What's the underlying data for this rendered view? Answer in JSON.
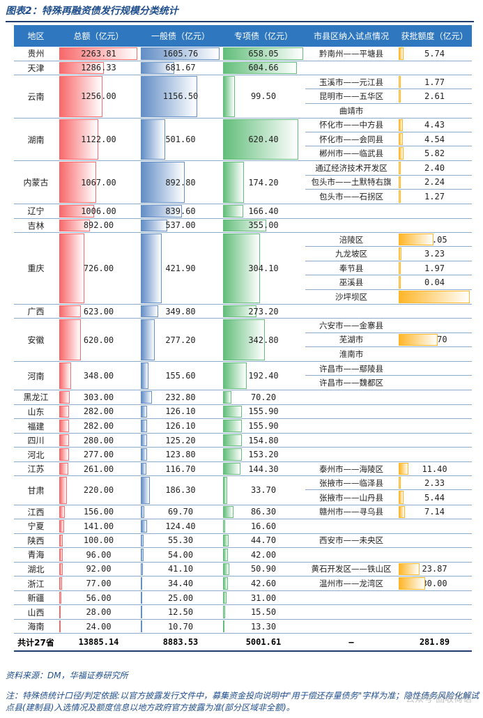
{
  "title": "图表2：特殊再融资债发行规模分类统计",
  "headers": [
    "地区",
    "总额（亿元）",
    "一般债（亿元）",
    "专项债（亿元）",
    "市县区纳入试点情况",
    "获批额度（亿元）"
  ],
  "colors": {
    "total": "#f8696b",
    "general": "#638ec6",
    "special": "#63be7b",
    "approved": "#ffb628",
    "header": "#2f78c0"
  },
  "rows": [
    {
      "region": "贵州",
      "total": "2263.81",
      "general": "1605.76",
      "special": "658.05",
      "items": [
        {
          "place": "黔南州——平塘县",
          "amount": "5.74"
        }
      ]
    },
    {
      "region": "天津",
      "total": "1286.33",
      "general": "681.67",
      "special": "604.66",
      "items": [
        {
          "place": "",
          "amount": ""
        }
      ]
    },
    {
      "region": "云南",
      "total": "1256.00",
      "general": "1156.50",
      "special": "99.50",
      "items": [
        {
          "place": "玉溪市——元江县",
          "amount": "1.77"
        },
        {
          "place": "昆明市——五华区",
          "amount": "2.61"
        },
        {
          "place": "曲靖市",
          "amount": ""
        }
      ]
    },
    {
      "region": "湖南",
      "total": "1122.00",
      "general": "501.60",
      "special": "620.40",
      "items": [
        {
          "place": "怀化市——中方县",
          "amount": "4.43"
        },
        {
          "place": "怀化市——会同县",
          "amount": "4.54"
        },
        {
          "place": "郴州市——临武县",
          "amount": "5.82"
        }
      ]
    },
    {
      "region": "内蒙古",
      "total": "1067.00",
      "general": "892.80",
      "special": "174.20",
      "items": [
        {
          "place": "通辽经济技术开发区",
          "amount": "2.40"
        },
        {
          "place": "包头市——土默特右旗",
          "amount": "2.24"
        },
        {
          "place": "包头市——石拐区",
          "amount": "1.27"
        }
      ]
    },
    {
      "region": "辽宁",
      "total": "1006.00",
      "general": "839.60",
      "special": "166.40",
      "items": [
        {
          "place": "",
          "amount": ""
        }
      ]
    },
    {
      "region": "吉林",
      "total": "892.00",
      "general": "537.00",
      "special": "355.00",
      "items": [
        {
          "place": "",
          "amount": ""
        }
      ]
    },
    {
      "region": "重庆",
      "total": "726.00",
      "general": "421.90",
      "special": "304.10",
      "items": [
        {
          "place": "涪陵区",
          "amount": "40.05"
        },
        {
          "place": "九龙坡区",
          "amount": "3.23"
        },
        {
          "place": "奉节县",
          "amount": "1.97"
        },
        {
          "place": "巫溪县",
          "amount": "0.04"
        },
        {
          "place": "沙坪坝区",
          "amount": "80.90"
        }
      ]
    },
    {
      "region": "广西",
      "total": "623.00",
      "general": "349.80",
      "special": "273.20",
      "items": [
        {
          "place": "",
          "amount": ""
        }
      ]
    },
    {
      "region": "安徽",
      "total": "620.00",
      "general": "277.20",
      "special": "342.80",
      "items": [
        {
          "place": "六安市——金寨县",
          "amount": ""
        },
        {
          "place": "芜湖市",
          "amount": "44.70"
        },
        {
          "place": "淮南市",
          "amount": ""
        }
      ]
    },
    {
      "region": "河南",
      "total": "348.00",
      "general": "155.60",
      "special": "192.40",
      "items": [
        {
          "place": "许昌市——鄢陵县",
          "amount": ""
        },
        {
          "place": "许昌市——魏都区",
          "amount": ""
        }
      ]
    },
    {
      "region": "黑龙江",
      "total": "303.00",
      "general": "232.80",
      "special": "70.20",
      "items": [
        {
          "place": "",
          "amount": ""
        }
      ]
    },
    {
      "region": "山东",
      "total": "282.00",
      "general": "126.10",
      "special": "155.90",
      "items": [
        {
          "place": "",
          "amount": ""
        }
      ]
    },
    {
      "region": "福建",
      "total": "282.00",
      "general": "126.10",
      "special": "155.90",
      "items": [
        {
          "place": "",
          "amount": ""
        }
      ]
    },
    {
      "region": "四川",
      "total": "280.00",
      "general": "125.20",
      "special": "154.80",
      "items": [
        {
          "place": "",
          "amount": ""
        }
      ]
    },
    {
      "region": "河北",
      "total": "277.00",
      "general": "123.80",
      "special": "153.20",
      "items": [
        {
          "place": "",
          "amount": ""
        }
      ]
    },
    {
      "region": "江苏",
      "total": "261.00",
      "general": "116.70",
      "special": "144.30",
      "items": [
        {
          "place": "泰州市——海陵区",
          "amount": "11.40"
        }
      ]
    },
    {
      "region": "甘肃",
      "total": "220.00",
      "general": "186.30",
      "special": "33.70",
      "items": [
        {
          "place": "张掖市——临泽县",
          "amount": "2.33"
        },
        {
          "place": "张掖市——山丹县",
          "amount": "5.44"
        }
      ]
    },
    {
      "region": "江西",
      "total": "156.00",
      "general": "69.70",
      "special": "86.30",
      "items": [
        {
          "place": "赣州市——寻乌县",
          "amount": "7.14"
        }
      ]
    },
    {
      "region": "宁夏",
      "total": "141.00",
      "general": "124.40",
      "special": "16.60",
      "items": [
        {
          "place": "",
          "amount": ""
        }
      ]
    },
    {
      "region": "陕西",
      "total": "100.00",
      "general": "55.30",
      "special": "44.70",
      "items": [
        {
          "place": "西安市——未央区",
          "amount": ""
        }
      ]
    },
    {
      "region": "青海",
      "total": "96.00",
      "general": "54.00",
      "special": "42.00",
      "items": [
        {
          "place": "",
          "amount": ""
        }
      ]
    },
    {
      "region": "湖北",
      "total": "92.00",
      "general": "41.10",
      "special": "50.90",
      "items": [
        {
          "place": "黄石开发区——铁山区",
          "amount": "23.87"
        }
      ]
    },
    {
      "region": "浙江",
      "total": "77.00",
      "general": "34.40",
      "special": "42.60",
      "items": [
        {
          "place": "温州市——龙湾区",
          "amount": "30.00"
        }
      ]
    },
    {
      "region": "新疆",
      "total": "56.00",
      "general": "25.00",
      "special": "31.00",
      "items": [
        {
          "place": "",
          "amount": ""
        }
      ]
    },
    {
      "region": "山西",
      "total": "28.00",
      "general": "12.50",
      "special": "15.50",
      "items": [
        {
          "place": "",
          "amount": ""
        }
      ]
    },
    {
      "region": "海南",
      "total": "24.00",
      "general": "10.70",
      "special": "13.30",
      "items": [
        {
          "place": "",
          "amount": ""
        }
      ]
    }
  ],
  "totals": {
    "label": "共计27省",
    "total": "13885.14",
    "general": "8883.53",
    "special": "5001.61",
    "pilot": "–",
    "approved": "281.89"
  },
  "source": "资料来源：DM，华福证券研究所",
  "note": "注：特殊债统计口径/判定依据:以官方披露发行文件中，募集资金投向说明中\"用于偿还存量债务\"字样为准；隐性债务风险化解试点县(建制县)入选情况及额度信息以地方政府官方披露为准(部分区域非全额)。",
  "watermark": "公众号·固收荷语"
}
